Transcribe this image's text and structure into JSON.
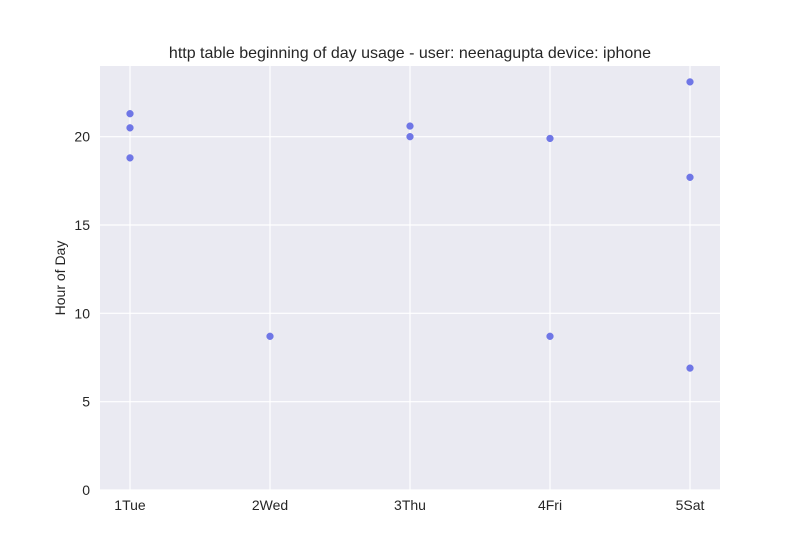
{
  "chart_data": {
    "type": "scatter",
    "title": "http table beginning of day usage -  user: neenagupta device: iphone",
    "xlabel": "",
    "ylabel": "Hour of Day",
    "x_categories": [
      "1Tue",
      "2Wed",
      "3Thu",
      "4Fri",
      "5Sat"
    ],
    "ylim": [
      0,
      24
    ],
    "y_ticks": [
      0,
      5,
      10,
      15,
      20
    ],
    "grid": true,
    "legend": "none",
    "colors": {
      "point": "#6f76e6",
      "plot_background": "#eaeaf2",
      "grid": "#ffffff"
    },
    "points": [
      {
        "x": "1Tue",
        "y": 21.3
      },
      {
        "x": "1Tue",
        "y": 20.5
      },
      {
        "x": "1Tue",
        "y": 18.8
      },
      {
        "x": "2Wed",
        "y": 8.7
      },
      {
        "x": "3Thu",
        "y": 20.6
      },
      {
        "x": "3Thu",
        "y": 20.0
      },
      {
        "x": "4Fri",
        "y": 19.9
      },
      {
        "x": "4Fri",
        "y": 8.7
      },
      {
        "x": "5Sat",
        "y": 23.1
      },
      {
        "x": "5Sat",
        "y": 17.7
      },
      {
        "x": "5Sat",
        "y": 6.9
      }
    ]
  }
}
